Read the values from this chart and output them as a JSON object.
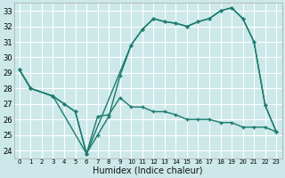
{
  "xlabel": "Humidex (Indice chaleur)",
  "bg_color": "#cce8e8",
  "grid_color": "#ffffff",
  "line_color": "#1a7a6e",
  "xlim": [
    -0.5,
    23.5
  ],
  "ylim": [
    23.5,
    33.5
  ],
  "xticks": [
    0,
    1,
    2,
    3,
    4,
    5,
    6,
    7,
    8,
    9,
    10,
    11,
    12,
    13,
    14,
    15,
    16,
    17,
    18,
    19,
    20,
    21,
    22,
    23
  ],
  "yticks": [
    24,
    25,
    26,
    27,
    28,
    29,
    30,
    31,
    32,
    33
  ],
  "line1_x": [
    0,
    1,
    3,
    6,
    10,
    11,
    12,
    13,
    14,
    15,
    16,
    17,
    18,
    19,
    20,
    21,
    22,
    23
  ],
  "line1_y": [
    29.2,
    28.0,
    27.5,
    23.8,
    30.8,
    31.8,
    32.5,
    32.3,
    32.2,
    32.0,
    32.3,
    32.5,
    33.0,
    33.2,
    32.5,
    31.0,
    26.9,
    25.2
  ],
  "line2_x": [
    0,
    1,
    3,
    4,
    5,
    6,
    7,
    8,
    9,
    10,
    11,
    12,
    13,
    14,
    15,
    16,
    17,
    18,
    19,
    20,
    21,
    22,
    23
  ],
  "line2_y": [
    29.2,
    28.0,
    27.5,
    27.0,
    26.5,
    23.8,
    25.0,
    26.2,
    28.8,
    30.8,
    31.8,
    32.5,
    32.3,
    32.2,
    32.0,
    32.3,
    32.5,
    33.0,
    33.2,
    32.5,
    31.0,
    26.9,
    25.2
  ],
  "line3_x": [
    0,
    1,
    3,
    4,
    5,
    6,
    7,
    8,
    9,
    10,
    11,
    12,
    13,
    14,
    15,
    16,
    17,
    18,
    19,
    20,
    21,
    22,
    23
  ],
  "line3_y": [
    29.2,
    28.0,
    27.5,
    27.0,
    26.5,
    23.8,
    26.2,
    26.3,
    27.4,
    26.8,
    26.8,
    26.5,
    26.5,
    26.3,
    26.0,
    26.0,
    26.0,
    25.8,
    25.8,
    25.5,
    25.5,
    25.5,
    25.2
  ]
}
